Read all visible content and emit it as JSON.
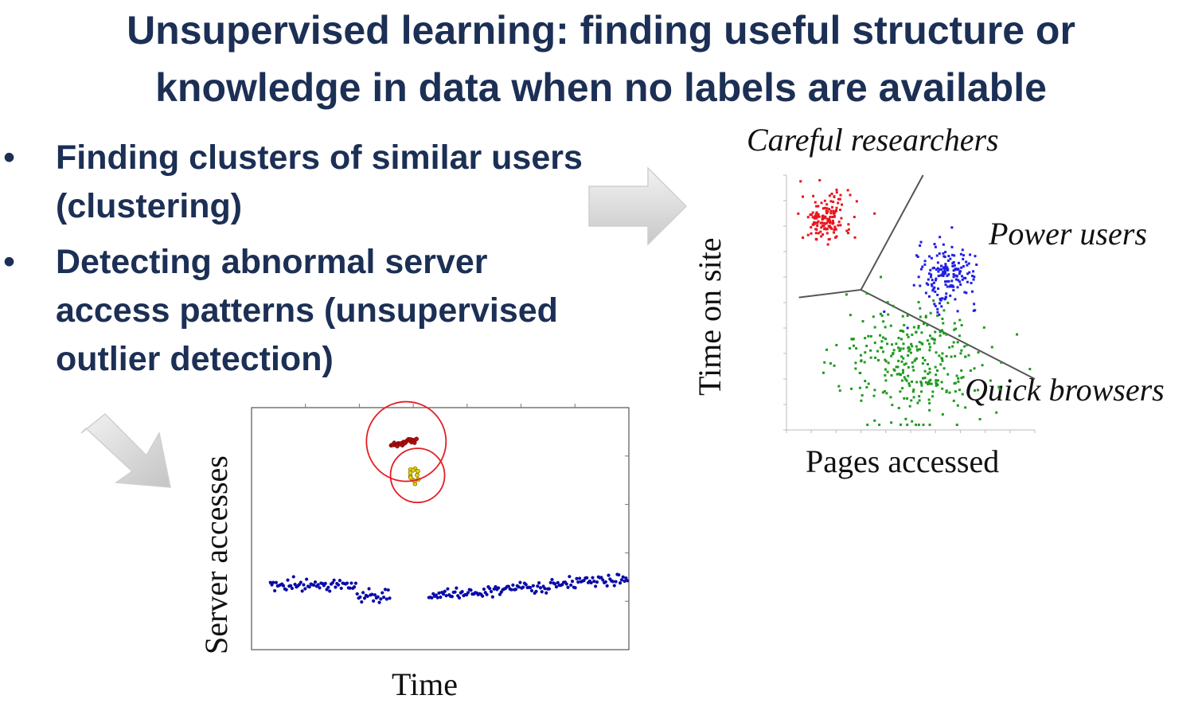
{
  "slide": {
    "title_line1": "Unsupervised learning: finding useful structure or",
    "title_line2": "knowledge in data when no labels are available",
    "bullets": [
      {
        "marker": "•",
        "text": "Finding clusters of similar users (clustering)"
      },
      {
        "marker": "•",
        "text": "Detecting abnormal server access patterns (unsupervised outlier detection)"
      }
    ]
  },
  "colors": {
    "title": "#1c2f55",
    "red_cluster": "#e8141c",
    "blue_cluster": "#1f1ee6",
    "green_cluster": "#1f9a1f",
    "series_blue": "#0a0aa8",
    "outlier_red": "#b31010",
    "outlier_yellow": "#e6d200",
    "circle": "#e31e24"
  },
  "chart_data": [
    {
      "type": "scatter",
      "title": "",
      "xlabel": "Pages accessed",
      "ylabel": "Time on site",
      "annotations": [
        "Careful researchers",
        "Power users",
        "Quick browsers"
      ],
      "xlim": [
        0,
        1
      ],
      "ylim": [
        0,
        1
      ],
      "clusters": [
        {
          "label": "Careful researchers",
          "color": "#e8141c",
          "center": [
            0.16,
            0.83
          ],
          "spread": [
            0.05,
            0.05
          ],
          "count": 150
        },
        {
          "label": "Power users",
          "color": "#1f1ee6",
          "center": [
            0.65,
            0.61
          ],
          "spread": [
            0.06,
            0.06
          ],
          "count": 170
        },
        {
          "label": "Quick browsers",
          "color": "#1f9a1f",
          "center": [
            0.52,
            0.26
          ],
          "spread": [
            0.15,
            0.12
          ],
          "count": 310
        }
      ],
      "boundaries": [
        [
          0.05,
          0.52
        ],
        [
          0.3,
          0.55
        ],
        [
          0.55,
          1.0
        ],
        [
          1.0,
          0.2
        ]
      ]
    },
    {
      "type": "scatter",
      "title": "",
      "xlabel": "Time",
      "ylabel": "Server accesses",
      "series": [
        {
          "color": "#0a0aa8",
          "segments": [
            [
              0.05,
              0.28,
              0.27
            ],
            [
              0.28,
              0.37,
              0.22
            ],
            [
              0.47,
              1.0,
              0.22
            ]
          ]
        },
        {
          "color": "#b31010",
          "x_range": [
            0.37,
            0.44
          ],
          "y_range": [
            0.84,
            0.87
          ]
        },
        {
          "color": "#e6d200",
          "x_range": [
            0.41,
            0.45
          ],
          "y_range": [
            0.68,
            0.75
          ]
        }
      ]
    }
  ],
  "labels": {
    "careful": "Careful researchers",
    "power": "Power users",
    "quick": "Quick browsers",
    "time_on_site": "Time on site",
    "pages_accessed": "Pages accessed",
    "server_accesses": "Server accesses",
    "time": "Time"
  },
  "icons": {
    "arrow1": "arrow-right-icon",
    "arrow2": "arrow-down-right-icon"
  }
}
